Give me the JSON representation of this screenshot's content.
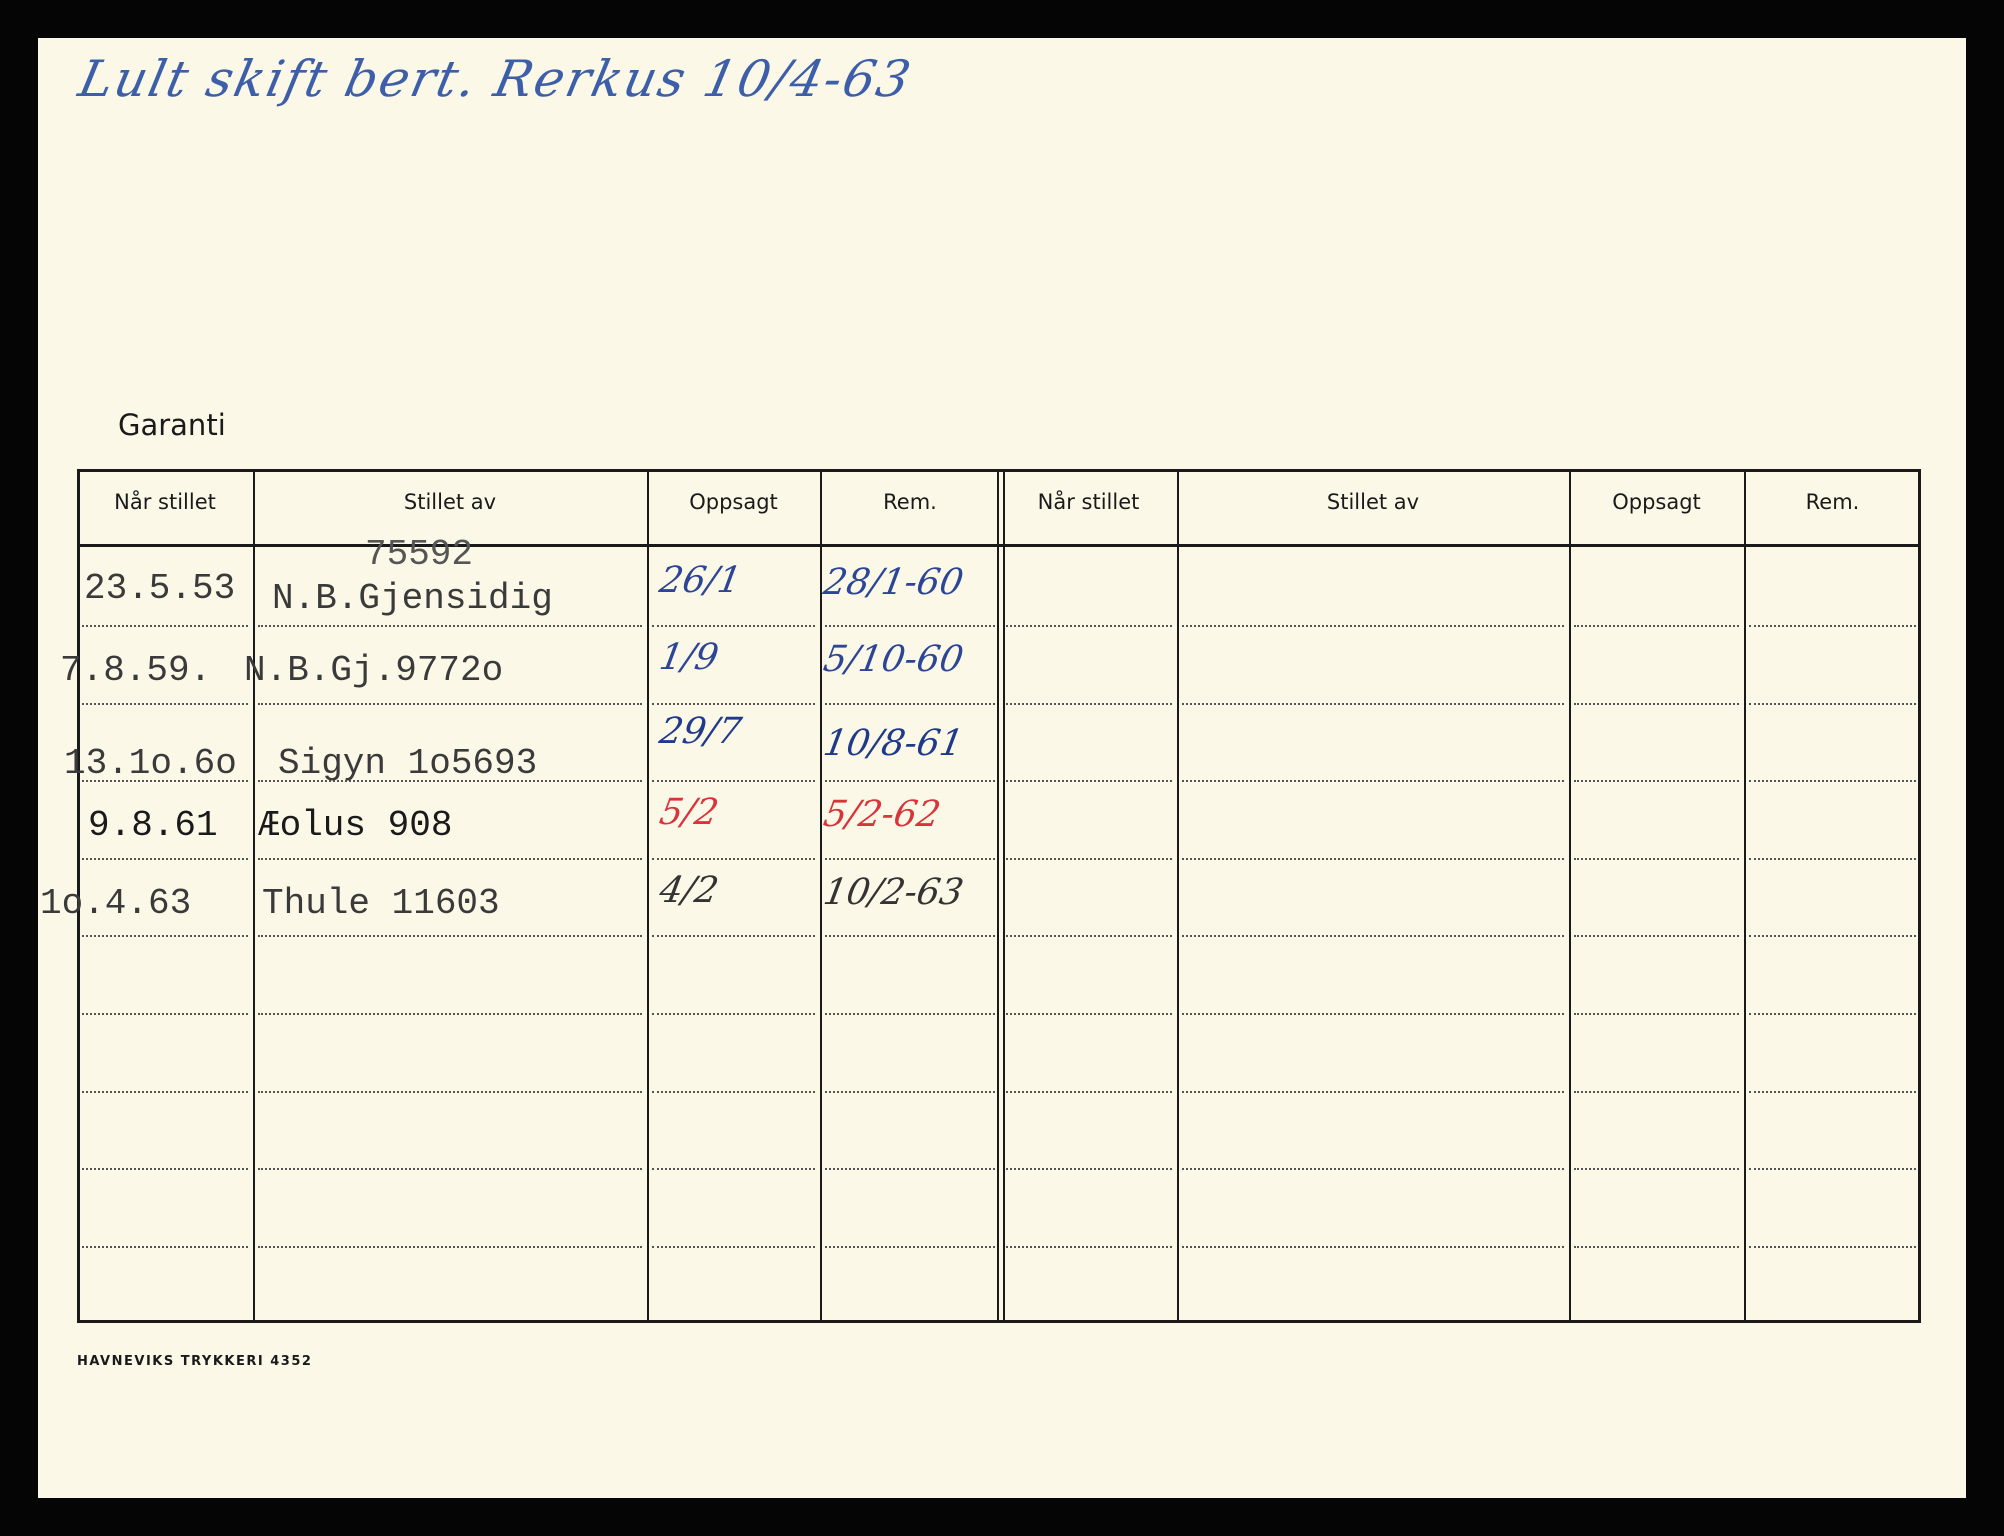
{
  "handwritten_note": "Lult skift bert. Rerkus 10/4-63",
  "section_title": "Garanti",
  "columns": [
    "Når stillet",
    "Stillet av",
    "Oppsagt",
    "Rem.",
    "Når stillet",
    "Stillet av",
    "Oppsagt",
    "Rem."
  ],
  "rows": [
    {
      "date": "23.5.53",
      "policy_no": "75592",
      "issuer": "N.B.Gjensidig",
      "cancelled": "26/1",
      "remark": "28/1-60",
      "ink": "#2c4596"
    },
    {
      "date": "7.8.59.",
      "policy_no": "",
      "issuer": "N.B.Gj.9772o",
      "cancelled": "1/9",
      "remark": "5/10-60",
      "ink": "#2c4596"
    },
    {
      "date": "13.1o.6o",
      "policy_no": "",
      "issuer": "Sigyn 1o5693",
      "cancelled": "29/7",
      "remark": "10/8-61",
      "ink": "#1f3a8a"
    },
    {
      "date": "9.8.61",
      "policy_no": "",
      "issuer": "Æolus  908",
      "cancelled": "5/2",
      "remark": "5/2-62",
      "ink": "#d8343a"
    },
    {
      "date": "1o.4.63",
      "policy_no": "",
      "issuer": "Thule 11603",
      "cancelled": "4/2",
      "remark": "10/2-63",
      "ink": "#333333"
    }
  ],
  "footer": "HAVNEVIKS TRYKKERI  4352"
}
